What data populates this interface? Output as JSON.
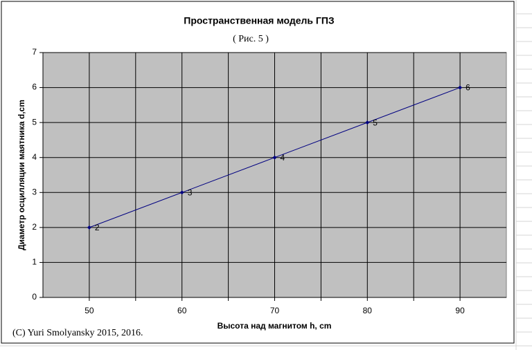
{
  "chart_data": {
    "type": "line",
    "title": "Пространственная модель ГПЗ",
    "subtitle": "( Рис. 5 )",
    "x_label": "Высота над магнитом h, cm",
    "y_label": "Диаметр осцилляции маятника d,cm",
    "annotation": "(C) Yuri Smolyansky 2015, 2016.",
    "x": [
      50,
      60,
      70,
      80,
      90
    ],
    "series": [
      {
        "color": "#000080",
        "values": [
          2,
          3,
          4,
          5,
          6
        ]
      }
    ],
    "xlim": [
      45,
      95
    ],
    "xticks": [
      50,
      60,
      70,
      80,
      90
    ],
    "x_minor_grid": [
      55,
      65,
      75,
      85
    ],
    "ylim": [
      0,
      7
    ],
    "yticks": [
      0,
      1,
      2,
      3,
      4,
      5,
      6,
      7
    ],
    "grid": true,
    "plot_background": "#c0c0c0"
  }
}
